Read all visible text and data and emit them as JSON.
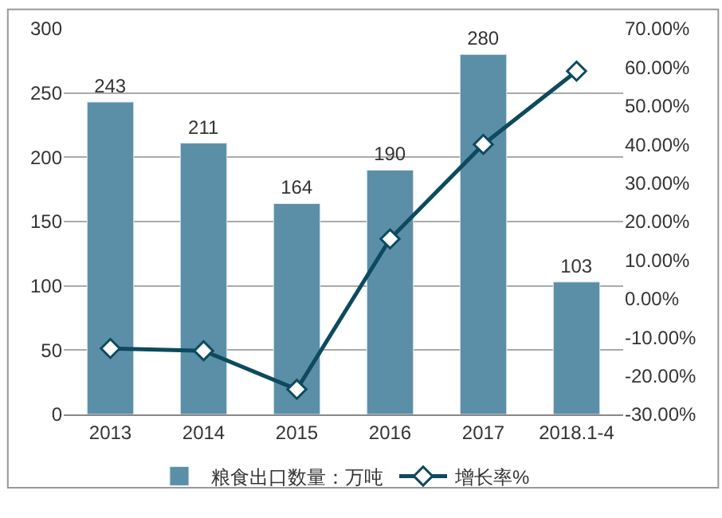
{
  "chart_data": {
    "type": "bar",
    "categories": [
      "2013",
      "2014",
      "2015",
      "2016",
      "2017",
      "2018.1-4"
    ],
    "series": [
      {
        "name": "粮食出口数量：万吨",
        "color": "#5b8fa8",
        "values": [
          243,
          211,
          164,
          190,
          280,
          103
        ],
        "value_labels": [
          "243",
          "211",
          "164",
          "190",
          "280",
          "103"
        ]
      },
      {
        "name": "增长率%",
        "type": "line",
        "axis": "y2",
        "color": "#0d4a5e",
        "marker": "diamond",
        "values": [
          -12.9,
          -13.5,
          -23.5,
          15.5,
          40,
          59
        ]
      }
    ],
    "ylim": [
      0,
      300
    ],
    "yticks": [
      0,
      50,
      100,
      150,
      200,
      250,
      300
    ],
    "y2lim": [
      -30,
      70
    ],
    "y2ticks": [
      {
        "value": -30,
        "label": "-30.00%"
      },
      {
        "value": -20,
        "label": "-20.00%"
      },
      {
        "value": -10,
        "label": "-10.00%"
      },
      {
        "value": 0,
        "label": "0.00%"
      },
      {
        "value": 10,
        "label": "10.00%"
      },
      {
        "value": 20,
        "label": "20.00%"
      },
      {
        "value": 30,
        "label": "30.00%"
      },
      {
        "value": 40,
        "label": "40.00%"
      },
      {
        "value": 50,
        "label": "50.00%"
      },
      {
        "value": 60,
        "label": "60.00%"
      },
      {
        "value": 70,
        "label": "70.00%"
      }
    ],
    "grid": "y",
    "legend": "bottom"
  }
}
